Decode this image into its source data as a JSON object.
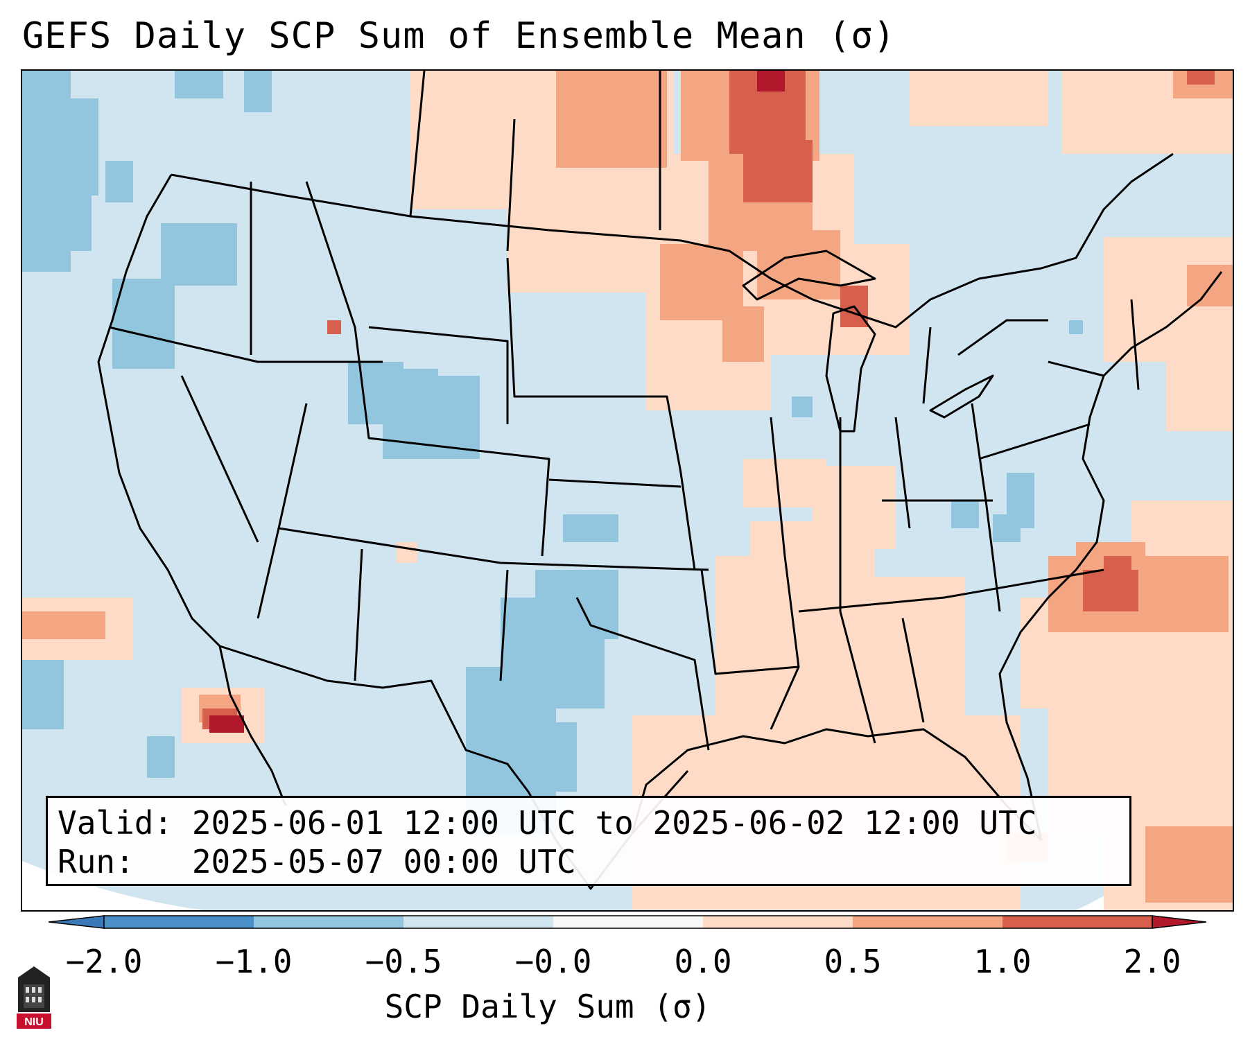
{
  "title": "GEFS Daily SCP Sum of Ensemble Mean (σ)",
  "info": {
    "valid_line": "Valid: 2025-06-01 12:00 UTC to 2025-06-02 12:00 UTC",
    "run_line": "Run:   2025-05-07 00:00 UTC"
  },
  "colorbar": {
    "label": "SCP Daily Sum (σ)",
    "ticks": [
      "−2.0",
      "−1.0",
      "−0.5",
      "−0.0",
      "0.0",
      "0.5",
      "1.0",
      "2.0"
    ],
    "colors": {
      "under": "#3a78b8",
      "n2_n1": "#4a8fc8",
      "n1_n05": "#92c5de",
      "n05_0": "#d1e5f0",
      "zero_band": "#f7f7f7",
      "p0_05": "#fddbc7",
      "p05_1": "#f4a582",
      "p1_2": "#d6604d",
      "over": "#b2182b"
    }
  },
  "map": {
    "region": "Contiguous United States",
    "background_color": "#d1e5f0",
    "outside_domain_color": "#ffffff"
  },
  "logo": {
    "text": "NIU"
  }
}
